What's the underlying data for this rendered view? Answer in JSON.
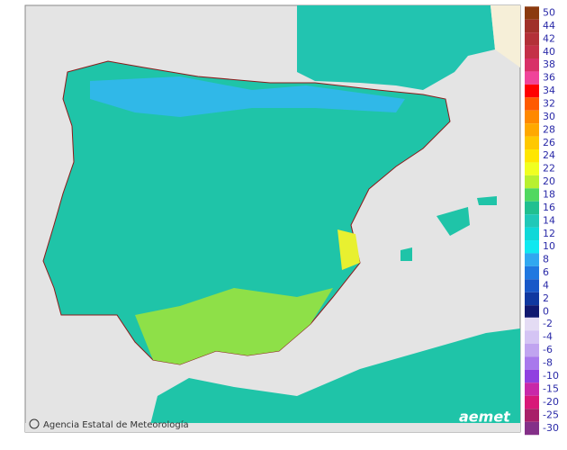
{
  "legend": {
    "items": [
      {
        "label": 50,
        "color": "#8b3a0f"
      },
      {
        "label": 44,
        "color": "#a0302a"
      },
      {
        "label": 42,
        "color": "#b33038"
      },
      {
        "label": 40,
        "color": "#c43048"
      },
      {
        "label": 38,
        "color": "#d83068"
      },
      {
        "label": 36,
        "color": "#f0449a"
      },
      {
        "label": 34,
        "color": "#ff0000"
      },
      {
        "label": 32,
        "color": "#ff5a00"
      },
      {
        "label": 30,
        "color": "#ff8800"
      },
      {
        "label": 28,
        "color": "#ffa800"
      },
      {
        "label": 26,
        "color": "#ffc800"
      },
      {
        "label": 24,
        "color": "#ffe600"
      },
      {
        "label": 22,
        "color": "#f0ff20"
      },
      {
        "label": 20,
        "color": "#b8f030"
      },
      {
        "label": 18,
        "color": "#50d860"
      },
      {
        "label": 16,
        "color": "#20c090"
      },
      {
        "label": 14,
        "color": "#20c8b8"
      },
      {
        "label": 12,
        "color": "#10d8d8"
      },
      {
        "label": 10,
        "color": "#10e8f0"
      },
      {
        "label": 8,
        "color": "#30a8f0"
      },
      {
        "label": 6,
        "color": "#2078e0"
      },
      {
        "label": 4,
        "color": "#1858c8"
      },
      {
        "label": 2,
        "color": "#1038a0"
      },
      {
        "label": 0,
        "color": "#101870"
      }
    ],
    "negative_items": [
      {
        "label": -2,
        "color": "#e4dcf4"
      },
      {
        "label": -4,
        "color": "#d4c4f4"
      },
      {
        "label": -6,
        "color": "#c0a4f0"
      },
      {
        "label": -8,
        "color": "#a878ec"
      },
      {
        "label": -10,
        "color": "#9040e0"
      },
      {
        "label": -15,
        "color": "#c828a8"
      },
      {
        "label": -20,
        "color": "#d81878"
      },
      {
        "label": -25,
        "color": "#a82068"
      },
      {
        "label": -30,
        "color": "#843088"
      }
    ]
  },
  "credit": "Agencia Estatal de Meteorología",
  "logo": "aemet"
}
